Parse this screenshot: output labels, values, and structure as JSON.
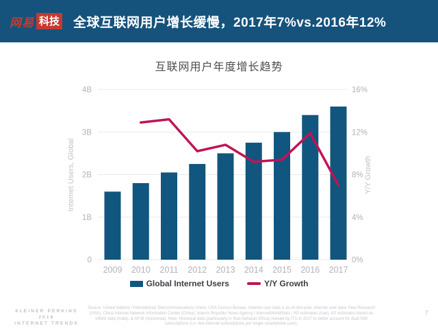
{
  "colors": {
    "header_bg": "#15537C",
    "logo_red": "#C7392F",
    "bar": "#11567E",
    "line": "#C01356",
    "grid": "#e8e8ea",
    "tick_text": "#b2b2ba",
    "axis_title_text": "#c2c2c8"
  },
  "header": {
    "logo_text": "网易",
    "logo_badge": "科技",
    "title": "全球互联网用户增长缓慢，2017年7%vs.2016年12%"
  },
  "chart_data": {
    "type": "bar",
    "title": "互联网用户年度增长趋势",
    "categories": [
      "2009",
      "2010",
      "2011",
      "2012",
      "2013",
      "2014",
      "2015",
      "2016",
      "2017"
    ],
    "series": [
      {
        "name": "Global Internet Users",
        "type": "bar",
        "axis": "left",
        "color": "#11567E",
        "values": [
          1.6,
          1.8,
          2.05,
          2.25,
          2.5,
          2.75,
          3.0,
          3.4,
          3.6
        ]
      },
      {
        "name": "Y/Y Growth",
        "type": "line",
        "axis": "right",
        "color": "#C01356",
        "values": [
          null,
          12.9,
          13.2,
          10.2,
          10.8,
          9.2,
          9.4,
          11.9,
          7.0
        ]
      }
    ],
    "left_axis": {
      "label": "Internet Users, Global",
      "min": 0,
      "max": 4,
      "ticks": [
        "0",
        "1B",
        "2B",
        "3B",
        "4B"
      ]
    },
    "right_axis": {
      "label": "Y/Y Growth",
      "min": 0,
      "max": 16,
      "ticks": [
        "0%",
        "4%",
        "8%",
        "12%",
        "16%"
      ]
    },
    "grid": true,
    "legend_position": "bottom"
  },
  "footer": {
    "source_note": "Source: United Nations / International Telecommunications Union, USA Census Bureau. Internet user data is as of mid-year. Internet user data: Pew Research (USA), China Internet Network Information Center (China), Islamic Republic News Agency / InternetWorldStats / KP estimates (Iran), KP estimates based on IAMAI data (India), & APJII (Indonesia).  Note: Historical data (particularly in Sub-Saharan Africa) revised by ITU in 2017 to better account for dual-SIM subscriptions (i.e. two Internet subscriptions per single smartphone user).",
    "brand_line1": "KLEINER PERKINS",
    "brand_line2": "2018",
    "brand_line3": "INTERNET TRENDS",
    "page_number": "7"
  }
}
